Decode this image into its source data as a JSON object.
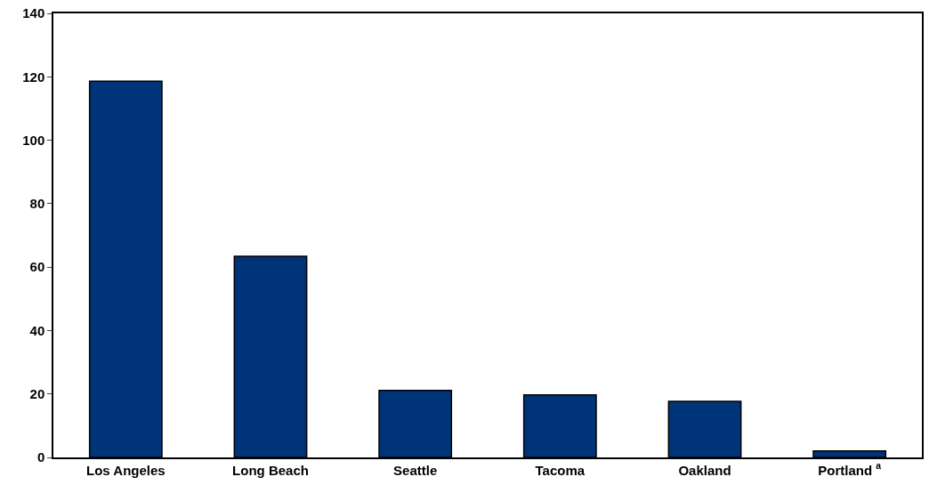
{
  "chart_data": {
    "type": "bar",
    "categories": [
      "Los Angeles",
      "Long Beach",
      "Seattle",
      "Tacoma",
      "Oakland",
      "Portland $^{a}$"
    ],
    "values": [
      118.6,
      63.4,
      21.1,
      19.7,
      17.7,
      2.0
    ],
    "color": "#003478",
    "ylim": [
      0,
      140
    ],
    "yticks": [
      0,
      20,
      40,
      60,
      80,
      100,
      120,
      140
    ]
  }
}
